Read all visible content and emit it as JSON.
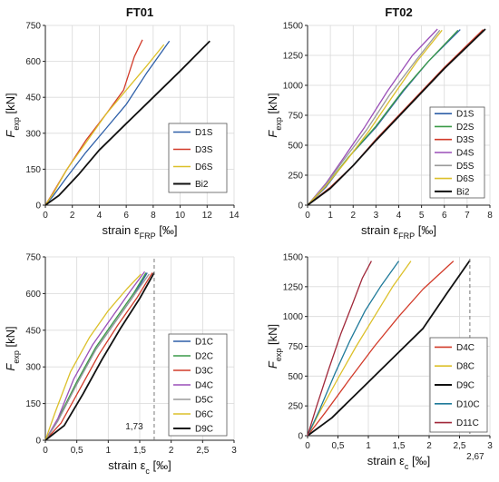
{
  "chart_data": [
    {
      "type": "line",
      "title": "FT01",
      "xlabel": "strain ε_FRP [‰]",
      "ylabel": "F_exp [kN]",
      "xlim": [
        0,
        14
      ],
      "ylim": [
        0,
        750
      ],
      "xticks": [
        0,
        2,
        4,
        6,
        8,
        10,
        12,
        14
      ],
      "yticks": [
        0,
        150,
        300,
        450,
        600,
        750
      ],
      "xtick_labels": [
        "0",
        "2",
        "4",
        "6",
        "8",
        "10",
        "12",
        "14"
      ],
      "ytick_labels": [
        "0",
        "150",
        "300",
        "450",
        "600",
        "750"
      ],
      "grid": true,
      "legend_position": "bottom-right",
      "series": [
        {
          "name": "D1S",
          "color": "#2e5fa8",
          "x": [
            0,
            0.6,
            1.5,
            3,
            4.5,
            6,
            7.5,
            9.2
          ],
          "y": [
            0,
            40,
            110,
            220,
            320,
            420,
            550,
            685
          ]
        },
        {
          "name": "D3S",
          "color": "#d23b2a",
          "x": [
            0,
            0.5,
            1.5,
            3,
            4.5,
            5.8,
            6.6,
            7.2
          ],
          "y": [
            0,
            45,
            140,
            270,
            380,
            480,
            620,
            690
          ]
        },
        {
          "name": "D6S",
          "color": "#dcc02a",
          "x": [
            0,
            0.6,
            1.6,
            3,
            4.5,
            6,
            7.5,
            8.8
          ],
          "y": [
            0,
            50,
            150,
            260,
            380,
            480,
            580,
            670
          ]
        },
        {
          "name": "Bi2",
          "color": "#111111",
          "x": [
            0,
            1,
            2.5,
            4,
            6,
            8,
            10,
            12.2
          ],
          "y": [
            0,
            40,
            130,
            230,
            340,
            450,
            560,
            685
          ]
        }
      ]
    },
    {
      "type": "line",
      "title": "FT02",
      "xlabel": "strain ε_FRP [‰]",
      "ylabel": "F_exp [kN]",
      "xlim": [
        0,
        8
      ],
      "ylim": [
        0,
        1500
      ],
      "xticks": [
        0,
        1,
        2,
        3,
        4,
        5,
        6,
        7,
        8
      ],
      "yticks": [
        0,
        250,
        500,
        750,
        1000,
        1250,
        1500
      ],
      "xtick_labels": [
        "0",
        "1",
        "2",
        "3",
        "4",
        "5",
        "6",
        "7",
        "8"
      ],
      "ytick_labels": [
        "0",
        "250",
        "500",
        "750",
        "1000",
        "1250",
        "1500"
      ],
      "grid": true,
      "legend_position": "bottom-right",
      "series": [
        {
          "name": "D1S",
          "color": "#2e5fa8",
          "x": [
            0,
            0.8,
            1.8,
            3,
            4.2,
            5.3,
            6.7
          ],
          "y": [
            0,
            150,
            400,
            650,
            950,
            1200,
            1465
          ]
        },
        {
          "name": "D2S",
          "color": "#3a9a48",
          "x": [
            0,
            0.8,
            1.8,
            3,
            4.2,
            5.3,
            6.6
          ],
          "y": [
            0,
            160,
            400,
            660,
            960,
            1200,
            1460
          ]
        },
        {
          "name": "D3S",
          "color": "#d23b2a",
          "x": [
            0,
            1,
            2,
            3,
            4.5,
            6,
            7.7
          ],
          "y": [
            0,
            150,
            330,
            550,
            850,
            1150,
            1465
          ]
        },
        {
          "name": "D4S",
          "color": "#9a4fb8",
          "x": [
            0,
            0.8,
            1.6,
            2.5,
            3.5,
            4.6,
            5.7
          ],
          "y": [
            0,
            180,
            400,
            650,
            950,
            1250,
            1470
          ]
        },
        {
          "name": "D5S",
          "color": "#9a9a9a",
          "x": [
            0,
            0.8,
            1.6,
            2.6,
            3.6,
            4.8,
            5.8
          ],
          "y": [
            0,
            170,
            380,
            630,
            920,
            1220,
            1460
          ]
        },
        {
          "name": "D6S",
          "color": "#dcc02a",
          "x": [
            0,
            0.8,
            1.7,
            2.7,
            3.7,
            4.8,
            5.9
          ],
          "y": [
            0,
            160,
            370,
            620,
            900,
            1200,
            1460
          ]
        },
        {
          "name": "Bi2",
          "color": "#111111",
          "x": [
            0,
            1,
            2,
            3,
            4.5,
            6,
            7.8
          ],
          "y": [
            0,
            140,
            330,
            540,
            840,
            1140,
            1470
          ]
        }
      ]
    },
    {
      "type": "line",
      "title": "",
      "xlabel": "strain ε_c [‰]",
      "ylabel": "F_exp [kN]",
      "xlim": [
        0,
        3
      ],
      "ylim": [
        0,
        750
      ],
      "xticks": [
        0,
        0.5,
        1,
        1.5,
        2,
        2.5,
        3
      ],
      "yticks": [
        0,
        150,
        300,
        450,
        600,
        750
      ],
      "xtick_labels": [
        "0",
        "0,5",
        "1",
        "1,5",
        "2",
        "2,5",
        "3"
      ],
      "ytick_labels": [
        "0",
        "150",
        "300",
        "450",
        "600",
        "750"
      ],
      "grid": true,
      "legend_position": "bottom-right",
      "annotation": {
        "text": "1,73",
        "x": 1.73
      },
      "series": [
        {
          "name": "D1C",
          "color": "#2e5fa8",
          "x": [
            0,
            0.2,
            0.5,
            0.8,
            1.1,
            1.4,
            1.62
          ],
          "y": [
            0,
            80,
            230,
            370,
            480,
            590,
            685
          ]
        },
        {
          "name": "D2C",
          "color": "#3a9a48",
          "x": [
            0,
            0.2,
            0.5,
            0.8,
            1.1,
            1.4,
            1.6
          ],
          "y": [
            0,
            85,
            240,
            380,
            490,
            600,
            685
          ]
        },
        {
          "name": "D3C",
          "color": "#d23b2a",
          "x": [
            0,
            0.25,
            0.55,
            0.85,
            1.15,
            1.45,
            1.7
          ],
          "y": [
            0,
            70,
            210,
            350,
            470,
            580,
            685
          ]
        },
        {
          "name": "D4C",
          "color": "#9a4fb8",
          "x": [
            0,
            0.2,
            0.45,
            0.75,
            1.05,
            1.35,
            1.58
          ],
          "y": [
            0,
            90,
            250,
            390,
            500,
            610,
            690
          ]
        },
        {
          "name": "D5C",
          "color": "#9a9a9a",
          "x": [
            0,
            0.2,
            0.5,
            0.8,
            1.1,
            1.4,
            1.65
          ],
          "y": [
            0,
            80,
            230,
            370,
            480,
            590,
            680
          ]
        },
        {
          "name": "D6C",
          "color": "#dcc02a",
          "x": [
            0,
            0.15,
            0.4,
            0.7,
            1.0,
            1.3,
            1.52
          ],
          "y": [
            0,
            110,
            280,
            420,
            530,
            620,
            680
          ]
        },
        {
          "name": "D9C",
          "color": "#111111",
          "x": [
            0,
            0.3,
            0.6,
            0.9,
            1.2,
            1.5,
            1.73
          ],
          "y": [
            0,
            60,
            190,
            330,
            460,
            580,
            685
          ]
        }
      ]
    },
    {
      "type": "line",
      "title": "",
      "xlabel": "strain ε_c [‰]",
      "ylabel": "F_exp [kN]",
      "xlim": [
        0,
        3
      ],
      "ylim": [
        0,
        1500
      ],
      "xticks": [
        0,
        0.5,
        1,
        1.5,
        2,
        2.5,
        3
      ],
      "yticks": [
        0,
        250,
        500,
        750,
        1000,
        1250,
        1500
      ],
      "xtick_labels": [
        "0",
        "0,5",
        "1",
        "1,5",
        "2",
        "2,5",
        "3"
      ],
      "ytick_labels": [
        "0",
        "250",
        "500",
        "750",
        "1000",
        "1250",
        "1500"
      ],
      "grid": true,
      "legend_position": "bottom-right",
      "annotation": {
        "text": "2,67",
        "x": 2.67
      },
      "series": [
        {
          "name": "D4C",
          "color": "#d23b2a",
          "x": [
            0,
            0.3,
            0.7,
            1.1,
            1.5,
            1.9,
            2.4
          ],
          "y": [
            0,
            200,
            480,
            750,
            1000,
            1230,
            1465
          ]
        },
        {
          "name": "D8C",
          "color": "#dcc02a",
          "x": [
            0,
            0.2,
            0.5,
            0.8,
            1.1,
            1.4,
            1.7
          ],
          "y": [
            0,
            200,
            480,
            750,
            1000,
            1250,
            1465
          ]
        },
        {
          "name": "D9C",
          "color": "#111111",
          "x": [
            0,
            0.4,
            0.9,
            1.4,
            1.9,
            2.3,
            2.67
          ],
          "y": [
            0,
            150,
            400,
            650,
            900,
            1200,
            1470
          ]
        },
        {
          "name": "D10C",
          "color": "#1f7a9a",
          "x": [
            0,
            0.2,
            0.45,
            0.7,
            0.95,
            1.2,
            1.5
          ],
          "y": [
            0,
            220,
            520,
            800,
            1050,
            1250,
            1465
          ]
        },
        {
          "name": "D11C",
          "color": "#a0283a",
          "x": [
            0,
            0.15,
            0.35,
            0.55,
            0.75,
            0.9,
            1.05
          ],
          "y": [
            0,
            250,
            560,
            860,
            1120,
            1320,
            1465
          ]
        }
      ]
    }
  ]
}
